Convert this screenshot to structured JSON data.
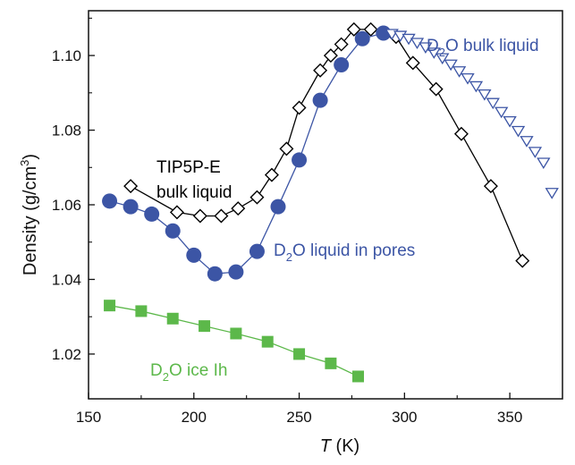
{
  "chart_data": {
    "type": "scatter",
    "xlabel": {
      "italic": "T",
      "unit": " (K)"
    },
    "ylabel": {
      "main": "Density (g/cm",
      "sup": "3",
      "close": ")"
    },
    "xlim": [
      150,
      375
    ],
    "ylim": [
      1.008,
      1.112
    ],
    "xticks": [
      "150",
      "200",
      "250",
      "300",
      "350"
    ],
    "yticks": [
      "1.02",
      "1.04",
      "1.06",
      "1.08",
      "1.10"
    ],
    "grid": false,
    "series": [
      {
        "marker": "diamond-open",
        "color": "#000000",
        "x": [
          170,
          192,
          203,
          213,
          221,
          230,
          237,
          244,
          250,
          260,
          265,
          270,
          276,
          284,
          296,
          304,
          315,
          327,
          341,
          356
        ],
        "y": [
          1.065,
          1.058,
          1.057,
          1.057,
          1.059,
          1.062,
          1.068,
          1.075,
          1.086,
          1.096,
          1.1,
          1.103,
          1.107,
          1.107,
          1.105,
          1.098,
          1.091,
          1.079,
          1.065,
          1.045
        ]
      },
      {
        "marker": "circle-filled",
        "color": "#3c55a5",
        "x": [
          160,
          170,
          180,
          190,
          200,
          210,
          220,
          230,
          240,
          250,
          260,
          270,
          280,
          290
        ],
        "y": [
          1.061,
          1.0595,
          1.0575,
          1.053,
          1.0465,
          1.0415,
          1.042,
          1.0475,
          1.0595,
          1.072,
          1.088,
          1.0975,
          1.1045,
          1.106
        ]
      },
      {
        "marker": "square-filled",
        "color": "#5cb84a",
        "x": [
          160,
          175,
          190,
          205,
          220,
          235,
          250,
          265,
          278
        ],
        "y": [
          1.033,
          1.0315,
          1.0295,
          1.0275,
          1.0255,
          1.0233,
          1.02,
          1.0175,
          1.014
        ]
      },
      {
        "marker": "triangle-down-open",
        "color": "#3c55a5",
        "x": [
          294,
          298,
          302,
          306,
          310,
          314,
          318,
          322,
          326,
          330,
          334,
          338,
          342,
          346,
          350,
          354,
          358,
          362,
          366,
          370
        ],
        "y": [
          1.1058,
          1.1053,
          1.1045,
          1.1034,
          1.1022,
          1.1008,
          1.0993,
          1.0976,
          1.0958,
          1.0939,
          1.0918,
          1.0896,
          1.0873,
          1.0849,
          1.0824,
          1.0798,
          1.0771,
          1.0742,
          1.0713,
          1.0632
        ]
      }
    ],
    "annotations": [
      {
        "parts": [
          "TIP5P-E"
        ],
        "color": "#000000"
      },
      {
        "parts": [
          "bulk liquid"
        ],
        "color": "#000000"
      },
      {
        "parts": [
          "D",
          "2",
          "O liquid in pores"
        ],
        "color": "#3c55a5"
      },
      {
        "parts": [
          "D",
          "2",
          "O bulk liquid"
        ],
        "color": "#3c55a5"
      },
      {
        "parts": [
          "D",
          "2",
          "O ice Ih"
        ],
        "color": "#5cb84a"
      }
    ]
  }
}
